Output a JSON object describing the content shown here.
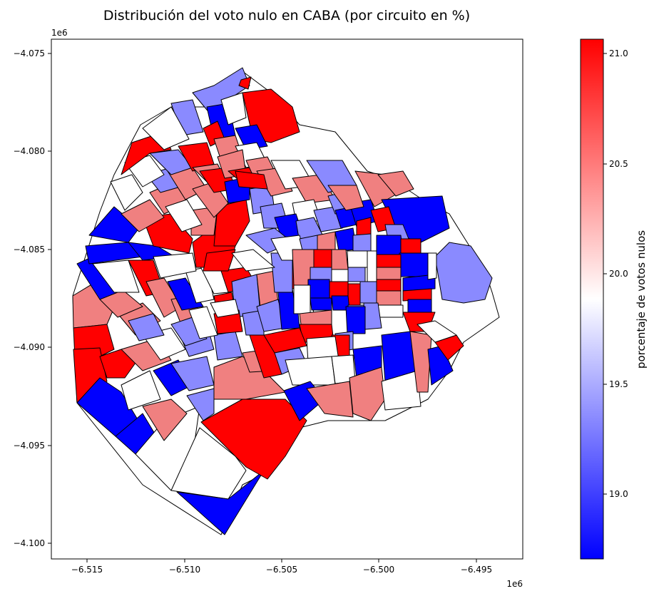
{
  "chart_data": {
    "type": "choropleth",
    "title": "Distribución del voto nulo en CABA (por circuito en %)",
    "x_ticks": [
      "−6.515",
      "−6.510",
      "−6.505",
      "−6.500",
      "−6.495"
    ],
    "y_ticks": [
      "−4.075",
      "−4.080",
      "−4.085",
      "−4.090",
      "−4.095",
      "−4.100"
    ],
    "x_offset_label": "1e6",
    "y_offset_label": "1e6",
    "colorbar": {
      "label": "porcentaje de votos nulos",
      "ticks": [
        "21.0",
        "20.5",
        "20.0",
        "19.5",
        "19.0"
      ],
      "min": 18.7,
      "max": 21.1,
      "colormap": "bwr",
      "low_color": "#0000ff",
      "mid_color": "#ffffff",
      "high_color": "#ff0000"
    },
    "x_range": [
      -6.517,
      -6.493
    ],
    "y_range": [
      -4.1008,
      -4.0738
    ],
    "grid": false
  }
}
